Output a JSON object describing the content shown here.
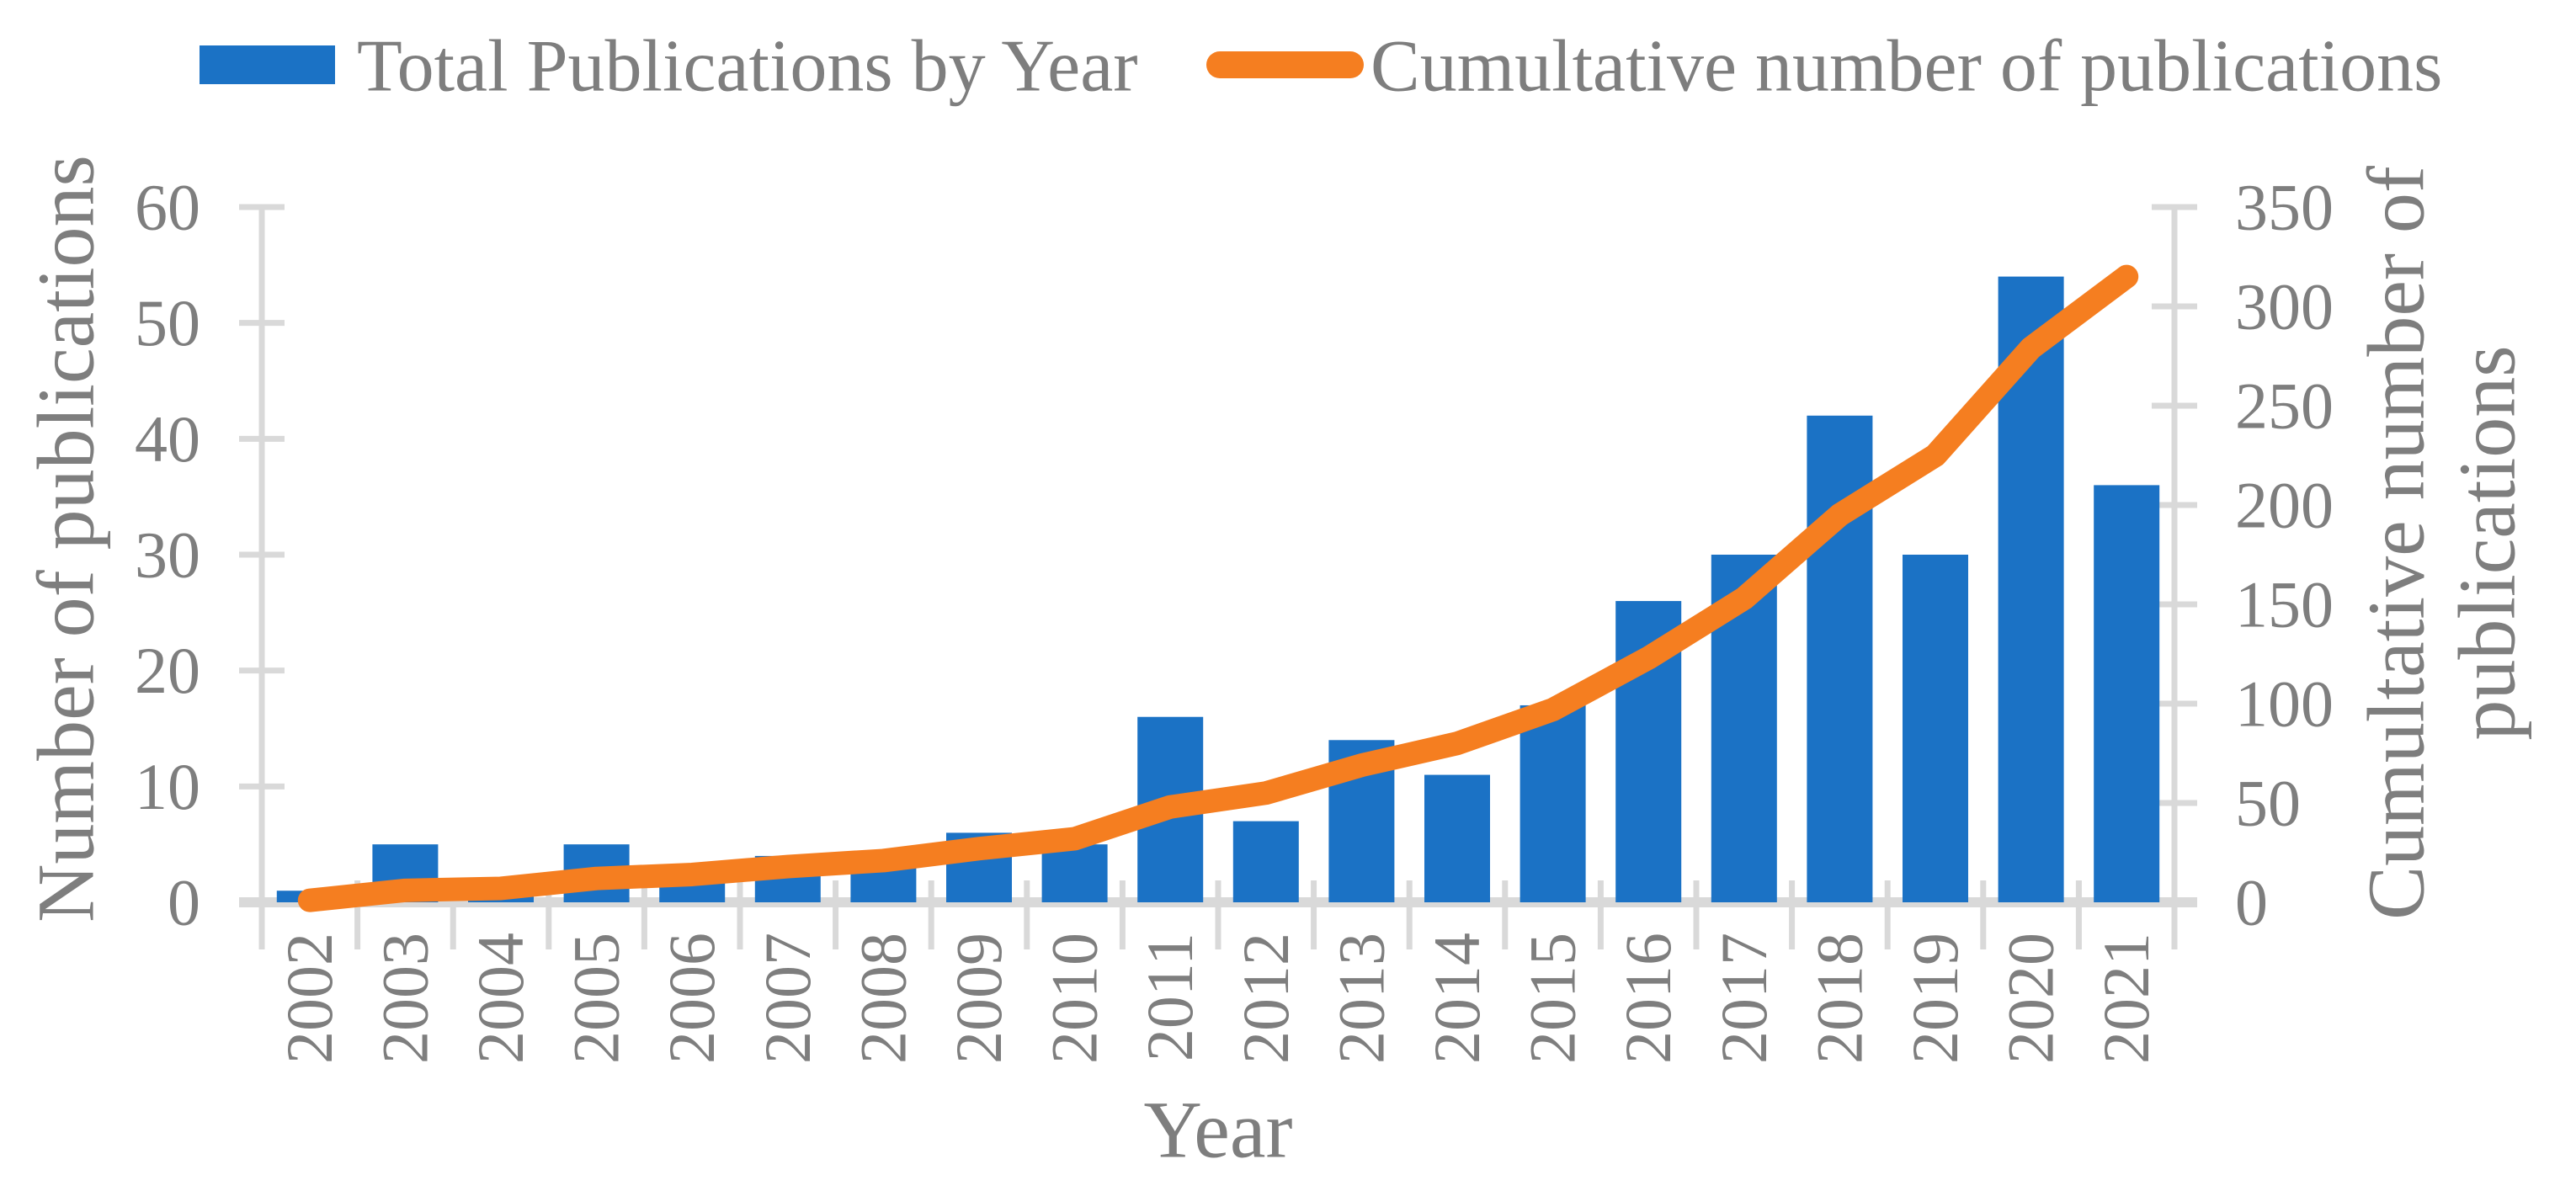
{
  "chart_data": {
    "type": "bar+line",
    "categories": [
      "2002",
      "2003",
      "2004",
      "2005",
      "2006",
      "2007",
      "2008",
      "2009",
      "2010",
      "2011",
      "2012",
      "2013",
      "2014",
      "2015",
      "2016",
      "2017",
      "2018",
      "2019",
      "2020",
      "2021"
    ],
    "series": [
      {
        "name": "Total Publications by Year",
        "type": "bar",
        "axis": "left",
        "values": [
          1,
          5,
          1,
          5,
          2,
          4,
          3,
          6,
          5,
          16,
          7,
          14,
          11,
          17,
          26,
          30,
          42,
          30,
          54,
          36
        ]
      },
      {
        "name": "Cumultative number of publications",
        "type": "line",
        "axis": "right",
        "values": [
          1,
          6,
          7,
          12,
          14,
          18,
          21,
          27,
          32,
          48,
          55,
          69,
          80,
          97,
          123,
          153,
          195,
          225,
          279,
          315
        ]
      }
    ],
    "left_axis": {
      "label": "Number of publications",
      "min": 0,
      "max": 60,
      "tick_step": 10,
      "ticks": [
        0,
        10,
        20,
        30,
        40,
        50,
        60
      ]
    },
    "right_axis": {
      "label": "Cumultative number of publications",
      "label_lines": [
        "Cumultative number of",
        "publications"
      ],
      "min": 0,
      "max": 350,
      "tick_step": 50,
      "ticks": [
        0,
        50,
        100,
        150,
        200,
        250,
        300,
        350
      ]
    },
    "x_axis": {
      "label": "Year"
    },
    "legend": {
      "position": "top",
      "items": [
        {
          "label": "Total Publications by Year",
          "swatch": "bar"
        },
        {
          "label": "Cumultative number of publications",
          "swatch": "line"
        }
      ]
    },
    "colors": {
      "bar": "#1B72C5",
      "line": "#F57E20",
      "axis": "#D9D9D9",
      "text": "#7E7E7E",
      "background": "#FFFFFF"
    },
    "grid": "off"
  }
}
